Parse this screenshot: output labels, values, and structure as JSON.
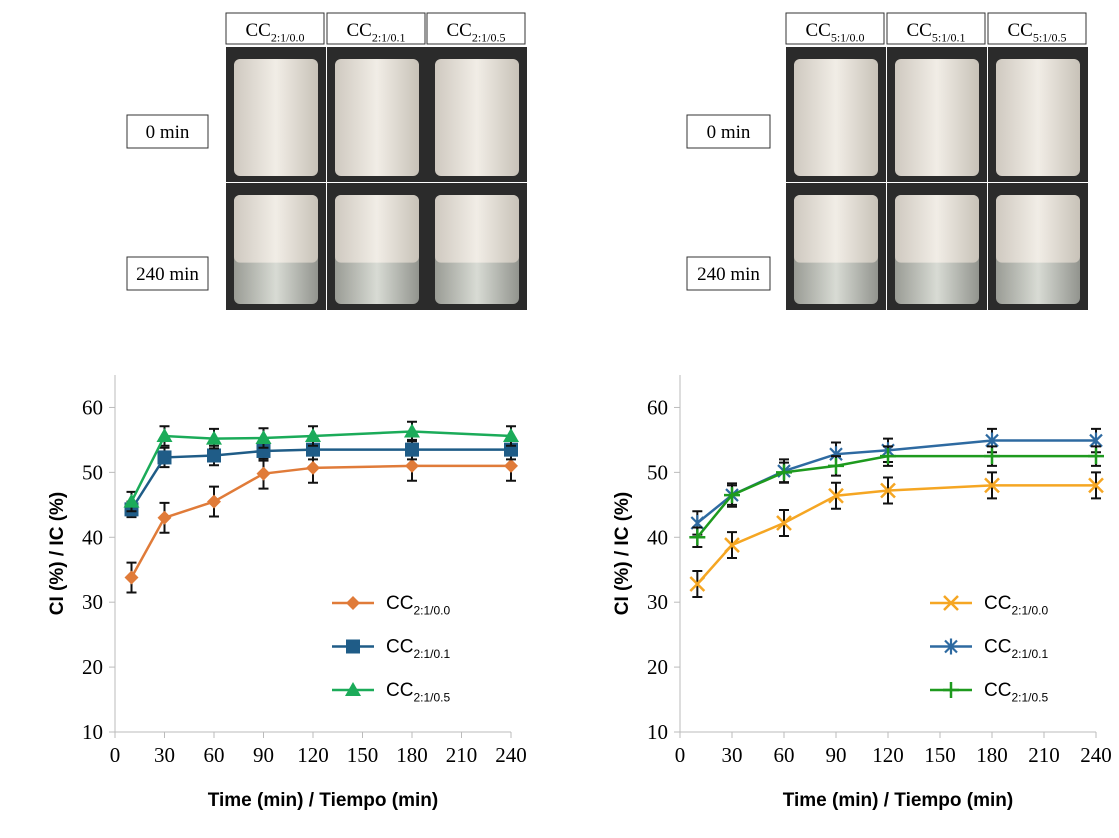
{
  "photos": [
    {
      "columns": [
        "CC2:1/0.0",
        "CC2:1/0.1",
        "CC2:1/0.5"
      ],
      "rows": [
        "0 min",
        "240 min"
      ]
    },
    {
      "columns": [
        "CC5:1/0.0",
        "CC5:1/0.1",
        "CC5:1/0.5"
      ],
      "rows": [
        "0 min",
        "240 min"
      ]
    }
  ],
  "chart_data": [
    {
      "type": "line",
      "xlabel": "Time (min) / Tiempo (min)",
      "ylabel": "CI (%) / IC (%)",
      "x": [
        10,
        30,
        60,
        90,
        120,
        180,
        240
      ],
      "xlim": [
        0,
        240
      ],
      "ylim": [
        10,
        65
      ],
      "xticks": [
        0,
        30,
        60,
        90,
        120,
        150,
        180,
        210,
        240
      ],
      "yticks": [
        10,
        20,
        30,
        40,
        50,
        60
      ],
      "series": [
        {
          "name": "CC2:1/0.0",
          "color": "#e07b39",
          "marker": "diamond",
          "values": [
            33.8,
            43,
            45.5,
            49.8,
            50.7,
            51,
            51
          ],
          "errors": [
            2.3,
            2.3,
            2.3,
            2.3,
            2.3,
            2.3,
            2.3
          ]
        },
        {
          "name": "CC2:1/0.1",
          "color": "#1f5c87",
          "marker": "square",
          "values": [
            44.3,
            52.3,
            52.6,
            53.3,
            53.5,
            53.5,
            53.5
          ],
          "errors": [
            1.2,
            1.5,
            1.5,
            1.5,
            1.5,
            1.5,
            1.5
          ]
        },
        {
          "name": "CC2:1/0.5",
          "color": "#1bab59",
          "marker": "triangle",
          "values": [
            45.5,
            55.6,
            55.2,
            55.3,
            55.6,
            56.3,
            55.6
          ],
          "errors": [
            1.5,
            1.5,
            1.5,
            1.5,
            1.5,
            1.5,
            1.5
          ]
        }
      ]
    },
    {
      "type": "line",
      "xlabel": "Time (min) / Tiempo (min)",
      "ylabel": "CI (%) / IC (%)",
      "x": [
        10,
        30,
        60,
        90,
        120,
        180,
        240
      ],
      "xlim": [
        0,
        240
      ],
      "ylim": [
        10,
        65
      ],
      "xticks": [
        0,
        30,
        60,
        90,
        120,
        150,
        180,
        210,
        240
      ],
      "yticks": [
        10,
        20,
        30,
        40,
        50,
        60
      ],
      "series": [
        {
          "name": "CC2:1/0.0",
          "color": "#f5a623",
          "marker": "x",
          "values": [
            32.8,
            38.8,
            42.2,
            46.4,
            47.2,
            48,
            48
          ],
          "errors": [
            2,
            2,
            2,
            2,
            2,
            2,
            2
          ]
        },
        {
          "name": "CC2:1/0.1",
          "color": "#2e6aa1",
          "marker": "asterisk",
          "values": [
            42.2,
            46.5,
            50.2,
            52.8,
            53.4,
            54.9,
            54.9
          ],
          "errors": [
            1.8,
            1.8,
            1.8,
            1.8,
            1.8,
            1.8,
            1.8
          ]
        },
        {
          "name": "CC2:1/0.5",
          "color": "#1e9a1e",
          "marker": "plus",
          "values": [
            40,
            46.5,
            50,
            51,
            52.5,
            52.5,
            52.5
          ],
          "errors": [
            1.5,
            1.5,
            1.5,
            1.5,
            1.5,
            1.5,
            1.5
          ]
        }
      ]
    }
  ]
}
